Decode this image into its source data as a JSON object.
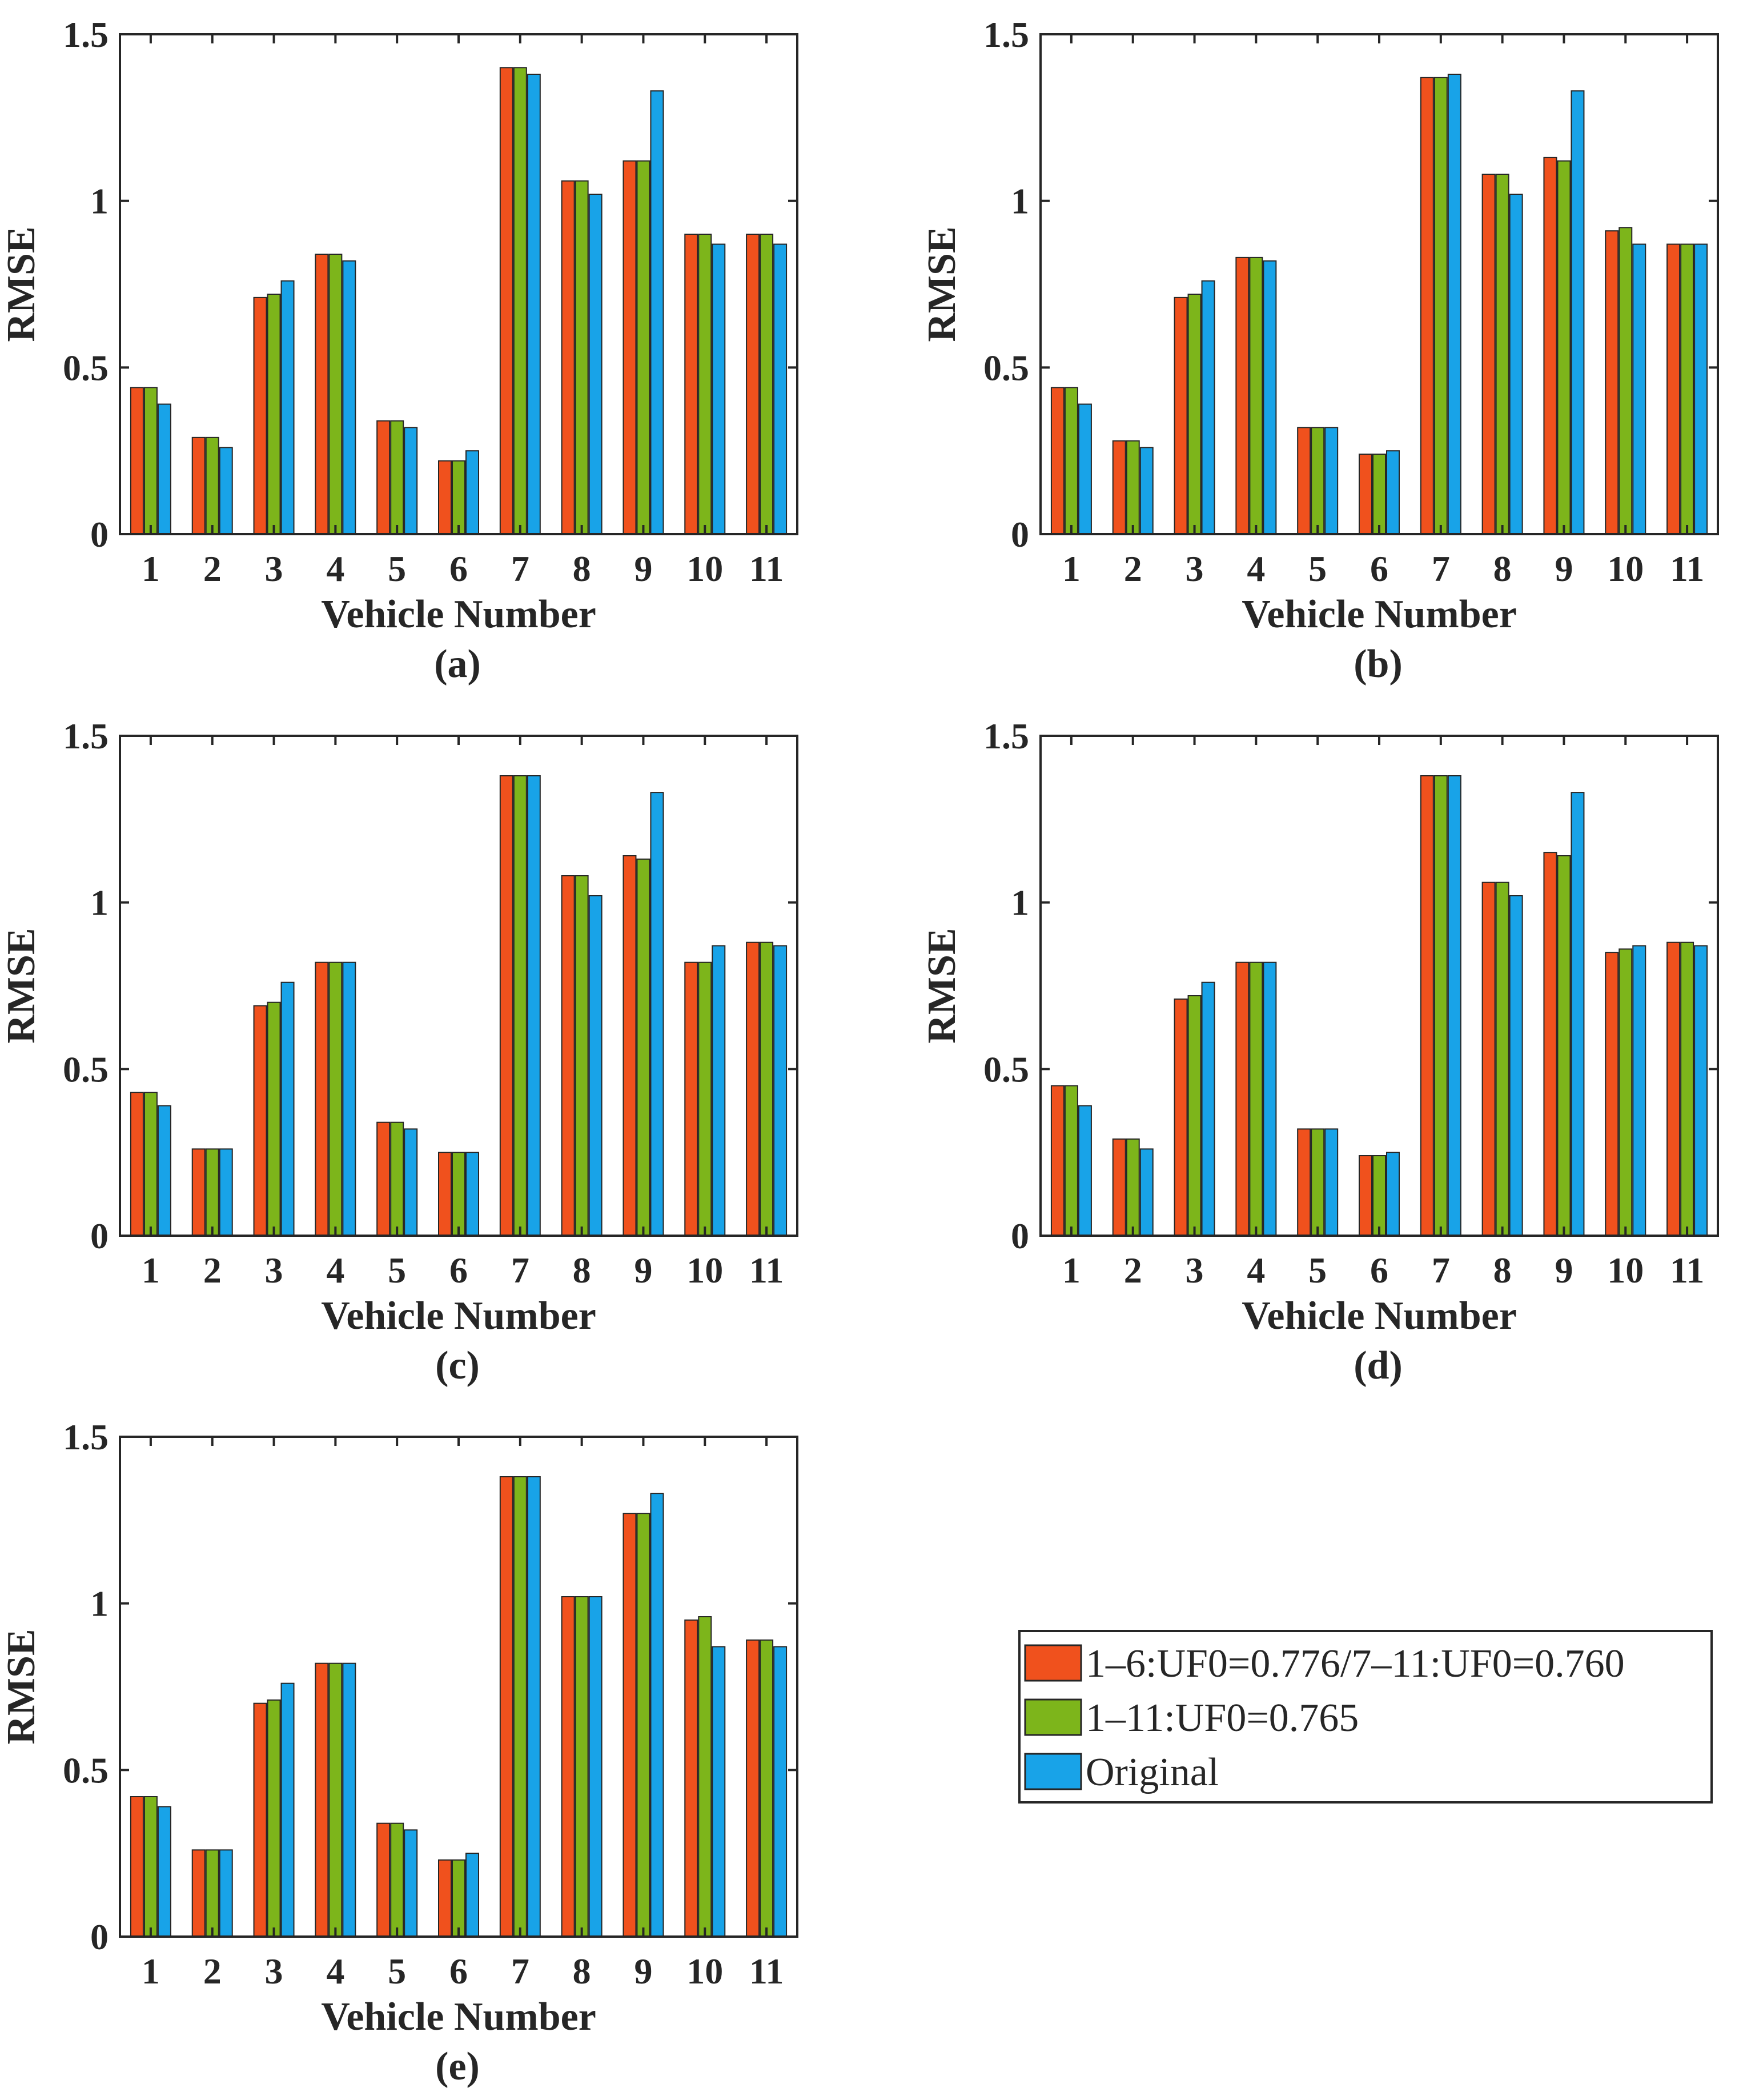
{
  "colors": {
    "series1": "#F0511D",
    "series2": "#7DB51B",
    "series3": "#18A3E8",
    "axis": "#262626",
    "background": "#ffffff"
  },
  "legend": {
    "position": "right of panel (e)",
    "items": [
      {
        "label": "1–6:UF0=0.776/7–11:UF0=0.760",
        "color": "#F0511D"
      },
      {
        "label": "1–11:UF0=0.765",
        "color": "#7DB51B"
      },
      {
        "label": "Original",
        "color": "#18A3E8"
      }
    ]
  },
  "chart_data": [
    {
      "panel": "(a)",
      "type": "bar",
      "xlabel": "Vehicle Number",
      "ylabel": "RMSE",
      "ylim": [
        0,
        1.5
      ],
      "yticks": [
        "0",
        "0.5",
        "1",
        "1.5"
      ],
      "categories": [
        "1",
        "2",
        "3",
        "4",
        "5",
        "6",
        "7",
        "8",
        "9",
        "10",
        "11"
      ],
      "series": [
        {
          "name": "1–6:UF0=0.776/7–11:UF0=0.760",
          "values": [
            0.44,
            0.29,
            0.71,
            0.84,
            0.34,
            0.22,
            1.4,
            1.06,
            1.12,
            0.9,
            0.9
          ]
        },
        {
          "name": "1–11:UF0=0.765",
          "values": [
            0.44,
            0.29,
            0.72,
            0.84,
            0.34,
            0.22,
            1.4,
            1.06,
            1.12,
            0.9,
            0.9
          ]
        },
        {
          "name": "Original",
          "values": [
            0.39,
            0.26,
            0.76,
            0.82,
            0.32,
            0.25,
            1.38,
            1.02,
            1.33,
            0.87,
            0.87
          ]
        }
      ]
    },
    {
      "panel": "(b)",
      "type": "bar",
      "xlabel": "Vehicle Number",
      "ylabel": "RMSE",
      "ylim": [
        0,
        1.5
      ],
      "yticks": [
        "0",
        "0.5",
        "1",
        "1.5"
      ],
      "categories": [
        "1",
        "2",
        "3",
        "4",
        "5",
        "6",
        "7",
        "8",
        "9",
        "10",
        "11"
      ],
      "series": [
        {
          "name": "1–6:UF0=0.776/7–11:UF0=0.760",
          "values": [
            0.44,
            0.28,
            0.71,
            0.83,
            0.32,
            0.24,
            1.37,
            1.08,
            1.13,
            0.91,
            0.87
          ]
        },
        {
          "name": "1–11:UF0=0.765",
          "values": [
            0.44,
            0.28,
            0.72,
            0.83,
            0.32,
            0.24,
            1.37,
            1.08,
            1.12,
            0.92,
            0.87
          ]
        },
        {
          "name": "Original",
          "values": [
            0.39,
            0.26,
            0.76,
            0.82,
            0.32,
            0.25,
            1.38,
            1.02,
            1.33,
            0.87,
            0.87
          ]
        }
      ]
    },
    {
      "panel": "(c)",
      "type": "bar",
      "xlabel": "Vehicle Number",
      "ylabel": "RMSE",
      "ylim": [
        0,
        1.5
      ],
      "yticks": [
        "0",
        "0.5",
        "1",
        "1.5"
      ],
      "categories": [
        "1",
        "2",
        "3",
        "4",
        "5",
        "6",
        "7",
        "8",
        "9",
        "10",
        "11"
      ],
      "series": [
        {
          "name": "1–6:UF0=0.776/7–11:UF0=0.760",
          "values": [
            0.43,
            0.26,
            0.69,
            0.82,
            0.34,
            0.25,
            1.38,
            1.08,
            1.14,
            0.82,
            0.88
          ]
        },
        {
          "name": "1–11:UF0=0.765",
          "values": [
            0.43,
            0.26,
            0.7,
            0.82,
            0.34,
            0.25,
            1.38,
            1.08,
            1.13,
            0.82,
            0.88
          ]
        },
        {
          "name": "Original",
          "values": [
            0.39,
            0.26,
            0.76,
            0.82,
            0.32,
            0.25,
            1.38,
            1.02,
            1.33,
            0.87,
            0.87
          ]
        }
      ]
    },
    {
      "panel": "(d)",
      "type": "bar",
      "xlabel": "Vehicle Number",
      "ylabel": "RMSE",
      "ylim": [
        0,
        1.5
      ],
      "yticks": [
        "0",
        "0.5",
        "1",
        "1.5"
      ],
      "categories": [
        "1",
        "2",
        "3",
        "4",
        "5",
        "6",
        "7",
        "8",
        "9",
        "10",
        "11"
      ],
      "series": [
        {
          "name": "1–6:UF0=0.776/7–11:UF0=0.760",
          "values": [
            0.45,
            0.29,
            0.71,
            0.82,
            0.32,
            0.24,
            1.38,
            1.06,
            1.15,
            0.85,
            0.88
          ]
        },
        {
          "name": "1–11:UF0=0.765",
          "values": [
            0.45,
            0.29,
            0.72,
            0.82,
            0.32,
            0.24,
            1.38,
            1.06,
            1.14,
            0.86,
            0.88
          ]
        },
        {
          "name": "Original",
          "values": [
            0.39,
            0.26,
            0.76,
            0.82,
            0.32,
            0.25,
            1.38,
            1.02,
            1.33,
            0.87,
            0.87
          ]
        }
      ]
    },
    {
      "panel": "(e)",
      "type": "bar",
      "xlabel": "Vehicle Number",
      "ylabel": "RMSE",
      "ylim": [
        0,
        1.5
      ],
      "yticks": [
        "0",
        "0.5",
        "1",
        "1.5"
      ],
      "categories": [
        "1",
        "2",
        "3",
        "4",
        "5",
        "6",
        "7",
        "8",
        "9",
        "10",
        "11"
      ],
      "series": [
        {
          "name": "1–6:UF0=0.776/7–11:UF0=0.760",
          "values": [
            0.42,
            0.26,
            0.7,
            0.82,
            0.34,
            0.23,
            1.38,
            1.02,
            1.27,
            0.95,
            0.89
          ]
        },
        {
          "name": "1–11:UF0=0.765",
          "values": [
            0.42,
            0.26,
            0.71,
            0.82,
            0.34,
            0.23,
            1.38,
            1.02,
            1.27,
            0.96,
            0.89
          ]
        },
        {
          "name": "Original",
          "values": [
            0.39,
            0.26,
            0.76,
            0.82,
            0.32,
            0.25,
            1.38,
            1.02,
            1.33,
            0.87,
            0.87
          ]
        }
      ]
    }
  ]
}
